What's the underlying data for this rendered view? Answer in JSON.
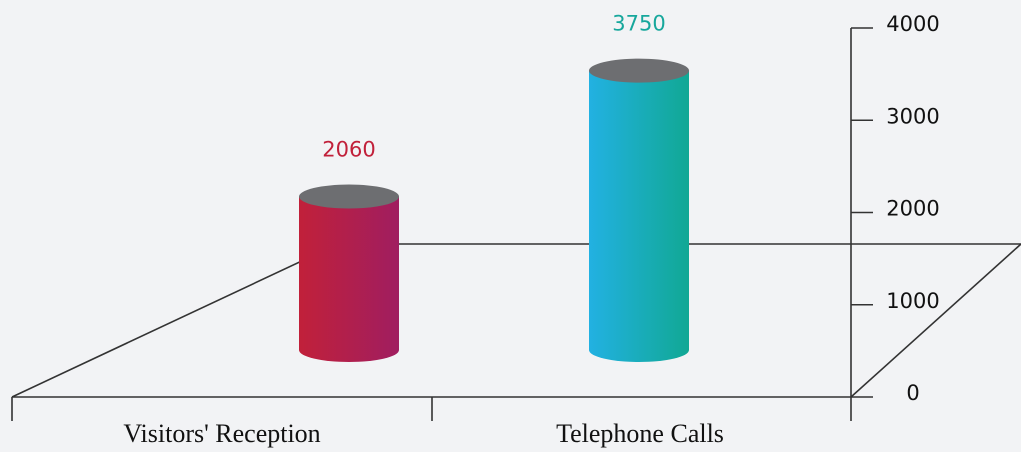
{
  "chart_data": {
    "type": "bar",
    "categories": [
      "Visitors' Reception",
      "Telephone Calls"
    ],
    "values": [
      2060,
      3750
    ],
    "colors": [
      [
        "#c1203a",
        "#a01e60"
      ],
      [
        "#22b1e2",
        "#11a894"
      ]
    ],
    "label_colors": [
      "#c1203a",
      "#17a79c"
    ],
    "top_color": "#6d6e71",
    "ylim": [
      0,
      4000
    ],
    "yticks": [
      0,
      1000,
      2000,
      3000,
      4000
    ]
  }
}
